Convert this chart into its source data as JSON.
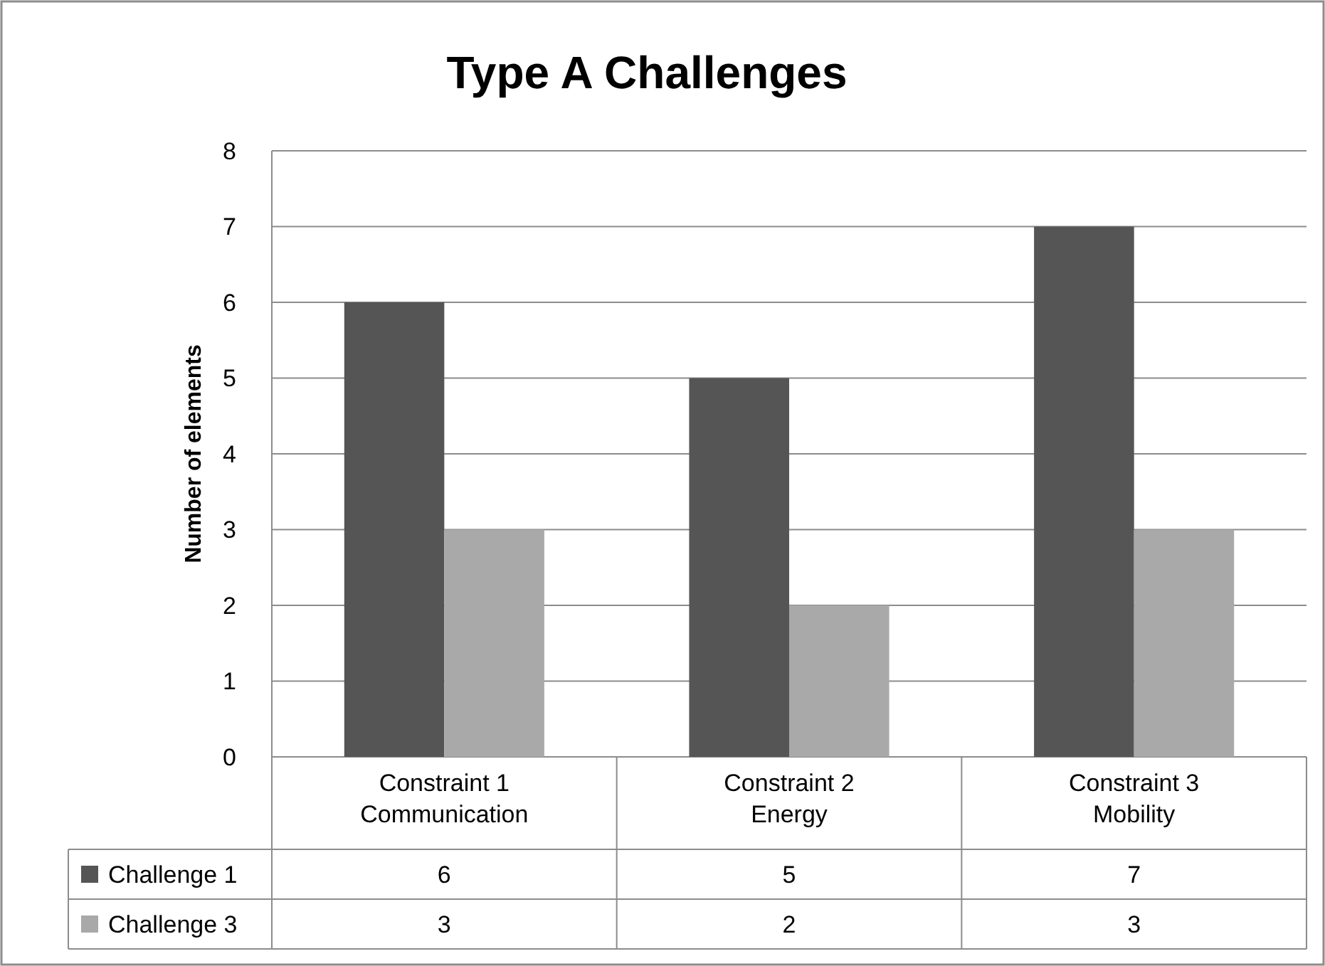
{
  "chart_data": {
    "type": "bar",
    "title": "Type A Challenges",
    "ylabel": "Number of elements",
    "categories": [
      "Constraint 1\nCommunication",
      "Constraint 2\nEnergy",
      "Constraint 3\nMobility"
    ],
    "series": [
      {
        "name": "Challenge 1",
        "color": "#555555",
        "values": [
          6,
          5,
          7
        ]
      },
      {
        "name": "Challenge 3",
        "color": "#a9a9a9",
        "values": [
          3,
          2,
          3
        ]
      }
    ],
    "ylim": [
      0,
      8
    ],
    "yticks": [
      0,
      1,
      2,
      3,
      4,
      5,
      6,
      7,
      8
    ],
    "grid": "y",
    "legend": "bottom",
    "data_labels": true
  }
}
